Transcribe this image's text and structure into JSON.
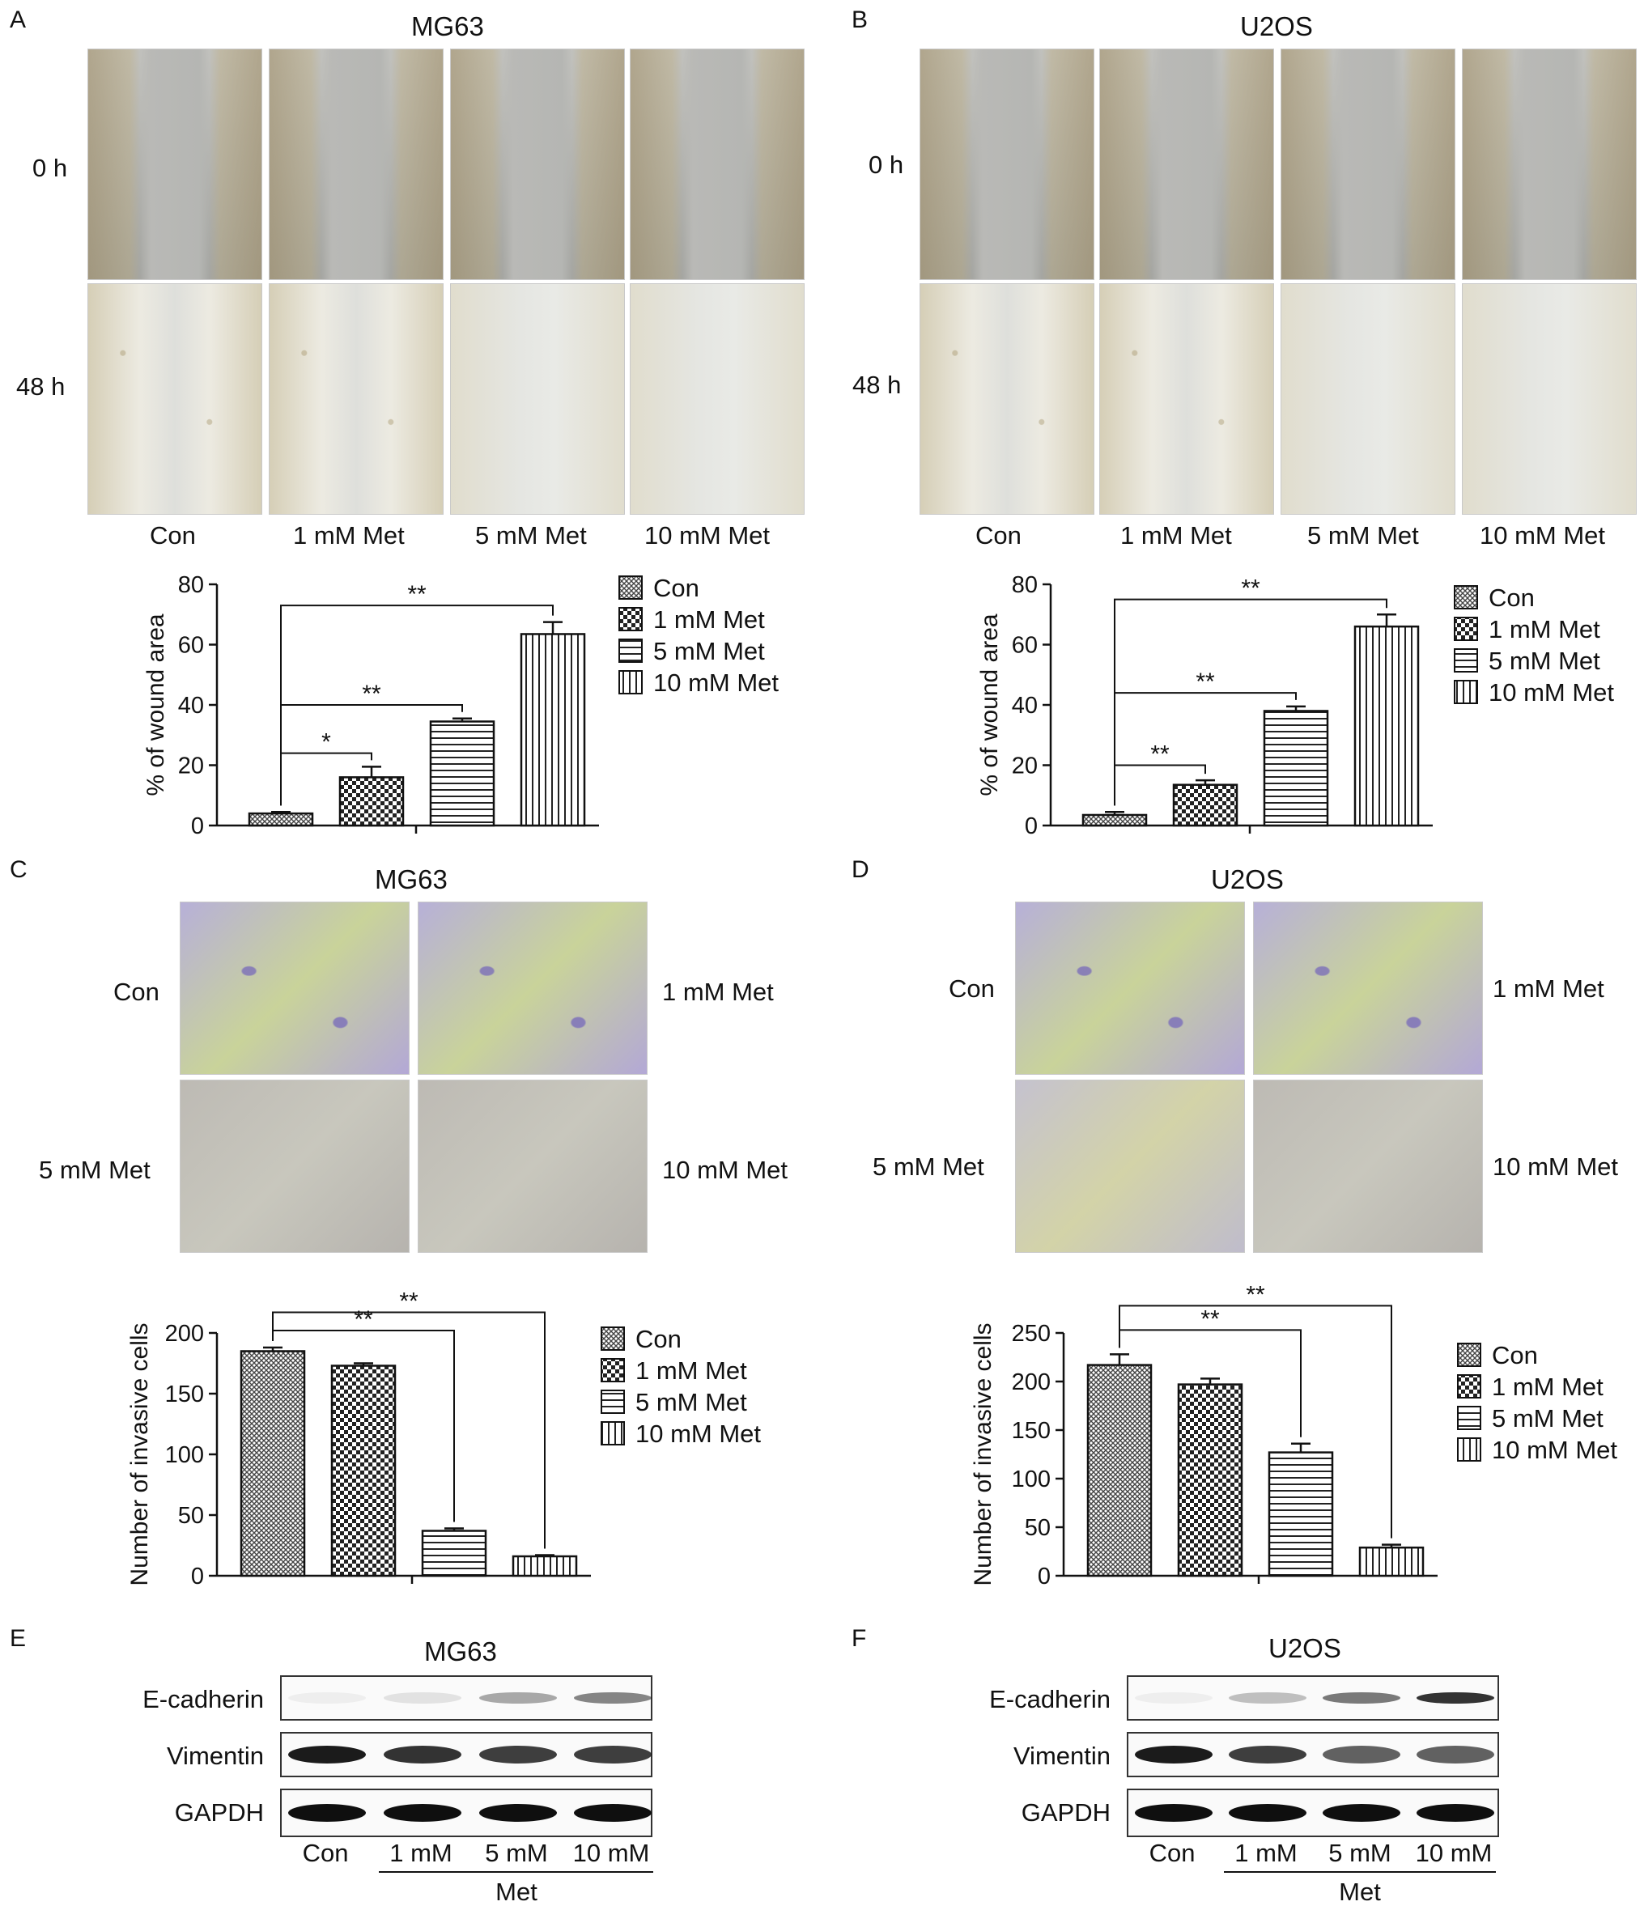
{
  "panel_letters": {
    "A": "A",
    "B": "B",
    "C": "C",
    "D": "D",
    "E": "E",
    "F": "F"
  },
  "cell_lines": {
    "left": "MG63",
    "right": "U2OS"
  },
  "wound": {
    "row_labels": [
      "0 h",
      "48 h"
    ],
    "col_labels": [
      "Con",
      "1 mM Met",
      "5 mM Met",
      "10 mM Met"
    ]
  },
  "invasion": {
    "left_labels": [
      "Con",
      "1 mM Met",
      "5 mM Met",
      "10 mM Met"
    ],
    "right_labels": [
      "Con",
      "1 mM Met",
      "5 mM Met",
      "10 mM Met"
    ]
  },
  "blot": {
    "proteins": [
      "E-cadherin",
      "Vimentin",
      "GAPDH"
    ],
    "lanes": [
      "Con",
      "1 mM",
      "5 mM",
      "10 mM"
    ],
    "treatment": "Met",
    "intensity_left": {
      "E-cadherin": [
        0.05,
        0.1,
        0.35,
        0.5
      ],
      "Vimentin": [
        0.95,
        0.85,
        0.8,
        0.8
      ],
      "GAPDH": [
        1,
        1,
        1,
        1
      ]
    },
    "intensity_right": {
      "E-cadherin": [
        0.05,
        0.25,
        0.55,
        0.85
      ],
      "Vimentin": [
        0.95,
        0.8,
        0.65,
        0.65
      ],
      "GAPDH": [
        1,
        1,
        1,
        1
      ]
    }
  },
  "chart_data": [
    {
      "id": "A",
      "type": "bar",
      "ylabel": "% of wound area",
      "ylim": [
        0,
        80
      ],
      "yticks": [
        "0",
        "20",
        "40",
        "60",
        "80"
      ],
      "categories": [
        "Con",
        "1 mM Met",
        "5 mM Met",
        "10 mM Met"
      ],
      "values": [
        4,
        16,
        34.5,
        63.5
      ],
      "errors": [
        0.5,
        3.5,
        1,
        4
      ],
      "legend": [
        "Con",
        "1 mM Met",
        "5 mM Met",
        "10 mM Met"
      ],
      "brackets": [
        {
          "from": 0,
          "to": 1,
          "label": "*",
          "y": 24
        },
        {
          "from": 0,
          "to": 2,
          "label": "**",
          "y": 40
        },
        {
          "from": 0,
          "to": 3,
          "label": "**",
          "y": 73
        }
      ]
    },
    {
      "id": "B",
      "type": "bar",
      "ylabel": "% of wound area",
      "ylim": [
        0,
        80
      ],
      "yticks": [
        "0",
        "20",
        "40",
        "60",
        "80"
      ],
      "categories": [
        "Con",
        "1 mM Met",
        "5 mM Met",
        "10 mM Met"
      ],
      "values": [
        3.5,
        13.5,
        38,
        66
      ],
      "errors": [
        1,
        1.5,
        1.5,
        4
      ],
      "legend": [
        "Con",
        "1 mM Met",
        "5 mM Met",
        "10 mM Met"
      ],
      "brackets": [
        {
          "from": 0,
          "to": 1,
          "label": "**",
          "y": 20
        },
        {
          "from": 0,
          "to": 2,
          "label": "**",
          "y": 44
        },
        {
          "from": 0,
          "to": 3,
          "label": "**",
          "y": 75
        }
      ]
    },
    {
      "id": "C",
      "type": "bar",
      "ylabel": "Number of invasive cells",
      "ylim": [
        0,
        200
      ],
      "yticks": [
        "0",
        "50",
        "100",
        "150",
        "200"
      ],
      "categories": [
        "Con",
        "1 mM Met",
        "5 mM Met",
        "10 mM Met"
      ],
      "values": [
        185,
        173,
        37,
        16
      ],
      "errors": [
        3,
        2,
        2,
        1
      ],
      "legend": [
        "Con",
        "1 mM Met",
        "5 mM Met",
        "10 mM Met"
      ],
      "brackets": [
        {
          "from": 0,
          "to": 2,
          "label": "**",
          "y": 202
        },
        {
          "from": 0,
          "to": 3,
          "label": "**",
          "y": 217
        }
      ]
    },
    {
      "id": "D",
      "type": "bar",
      "ylabel": "Number of invasive cells",
      "ylim": [
        0,
        250
      ],
      "yticks": [
        "0",
        "50",
        "100",
        "150",
        "200",
        "250"
      ],
      "categories": [
        "Con",
        "1 mM Met",
        "5 mM Met",
        "10 mM Met"
      ],
      "values": [
        217,
        197,
        127,
        29
      ],
      "errors": [
        11,
        6,
        9,
        3
      ],
      "legend": [
        "Con",
        "1 mM Met",
        "5 mM Met",
        "10 mM Met"
      ],
      "brackets": [
        {
          "from": 0,
          "to": 2,
          "label": "**",
          "y": 253
        },
        {
          "from": 0,
          "to": 3,
          "label": "**",
          "y": 278
        }
      ]
    }
  ]
}
